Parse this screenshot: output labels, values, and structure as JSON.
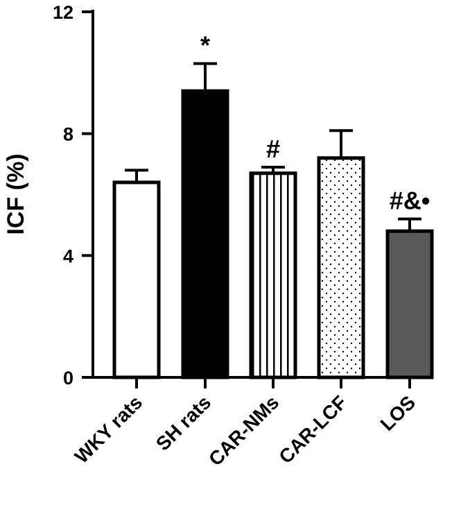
{
  "chart_data": {
    "type": "bar",
    "title": "",
    "xlabel": "",
    "ylabel": "ICF (%)",
    "ylim": [
      0,
      12
    ],
    "yticks": [
      "0",
      "4",
      "8",
      "12"
    ],
    "grid": false,
    "legend": "none",
    "categories": [
      "WKY rats",
      "SH rats",
      "CAR-NMs",
      "CAR-LCF",
      "LOS"
    ],
    "values": [
      6.4,
      9.4,
      6.7,
      7.2,
      4.8
    ],
    "errors": [
      0.4,
      0.9,
      0.2,
      0.9,
      0.4
    ],
    "annotations": [
      "",
      "*",
      "#",
      "",
      "#&•"
    ],
    "fills": [
      "white",
      "black",
      "vertical-lines",
      "dots",
      "gray"
    ],
    "colors": {
      "stroke": "#000000",
      "gray_fill": "#595959",
      "black_fill": "#000000",
      "white_fill": "#ffffff"
    }
  }
}
